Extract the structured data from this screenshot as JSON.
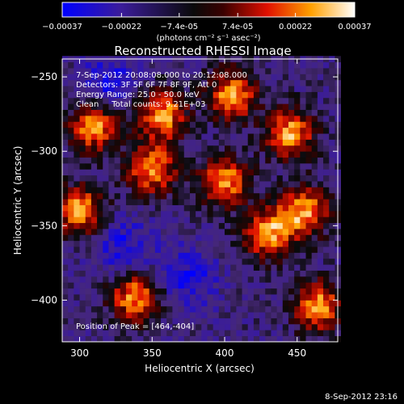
{
  "colorbar": {
    "tick_labels": [
      "-0.00037",
      "-0.00022",
      "-7.4e-05",
      "7.4e-05",
      "0.00022",
      "0.00037"
    ],
    "tick_values": [
      -0.00037,
      -0.00022,
      -7.4e-05,
      7.4e-05,
      0.00022,
      0.00037
    ],
    "range": [
      -0.00037,
      0.00037
    ],
    "unit_label": "(photons cm⁻² s⁻¹ asec⁻²)"
  },
  "chart_data": {
    "type": "heatmap",
    "title": "Reconstructed RHESSI Image",
    "xlabel": "Heliocentric X (arcsec)",
    "ylabel": "Heliocentric Y (arcsec)",
    "xlim": [
      288,
      478
    ],
    "ylim": [
      -428,
      -238
    ],
    "x_ticks": [
      300,
      350,
      400,
      450
    ],
    "y_ticks": [
      -250,
      -300,
      -350,
      -400
    ],
    "annotations": [
      "7-Sep-2012 20:08:08.000 to 20:12:08.000",
      "Detectors: 3F 5F 6F 7F 8F 9F, Att 0",
      "Energy Range: 25.0 - 50.0 keV",
      "Clean     Total counts: 9.21E+03"
    ],
    "peak_label": "Position of Peak = [464,-404]",
    "peak": [
      464,
      -404
    ],
    "hot_regions": [
      {
        "x": 310,
        "y": -283
      },
      {
        "x": 357,
        "y": -275
      },
      {
        "x": 405,
        "y": -262
      },
      {
        "x": 445,
        "y": -288
      },
      {
        "x": 350,
        "y": -312
      },
      {
        "x": 400,
        "y": -320
      },
      {
        "x": 455,
        "y": -340
      },
      {
        "x": 300,
        "y": -340
      },
      {
        "x": 430,
        "y": -355
      },
      {
        "x": 338,
        "y": -398
      },
      {
        "x": 464,
        "y": -404
      }
    ],
    "cold_regions": [
      {
        "x": 320,
        "y": -255
      },
      {
        "x": 375,
        "y": -385
      },
      {
        "x": 330,
        "y": -365
      }
    ]
  },
  "footer": {
    "timestamp": "8-Sep-2012 23:16"
  },
  "colors": {
    "background": "#000000",
    "text": "#ffffff",
    "colormap_low": "#0000ff",
    "colormap_mid": "#000000",
    "colormap_high": "#ffffff"
  }
}
